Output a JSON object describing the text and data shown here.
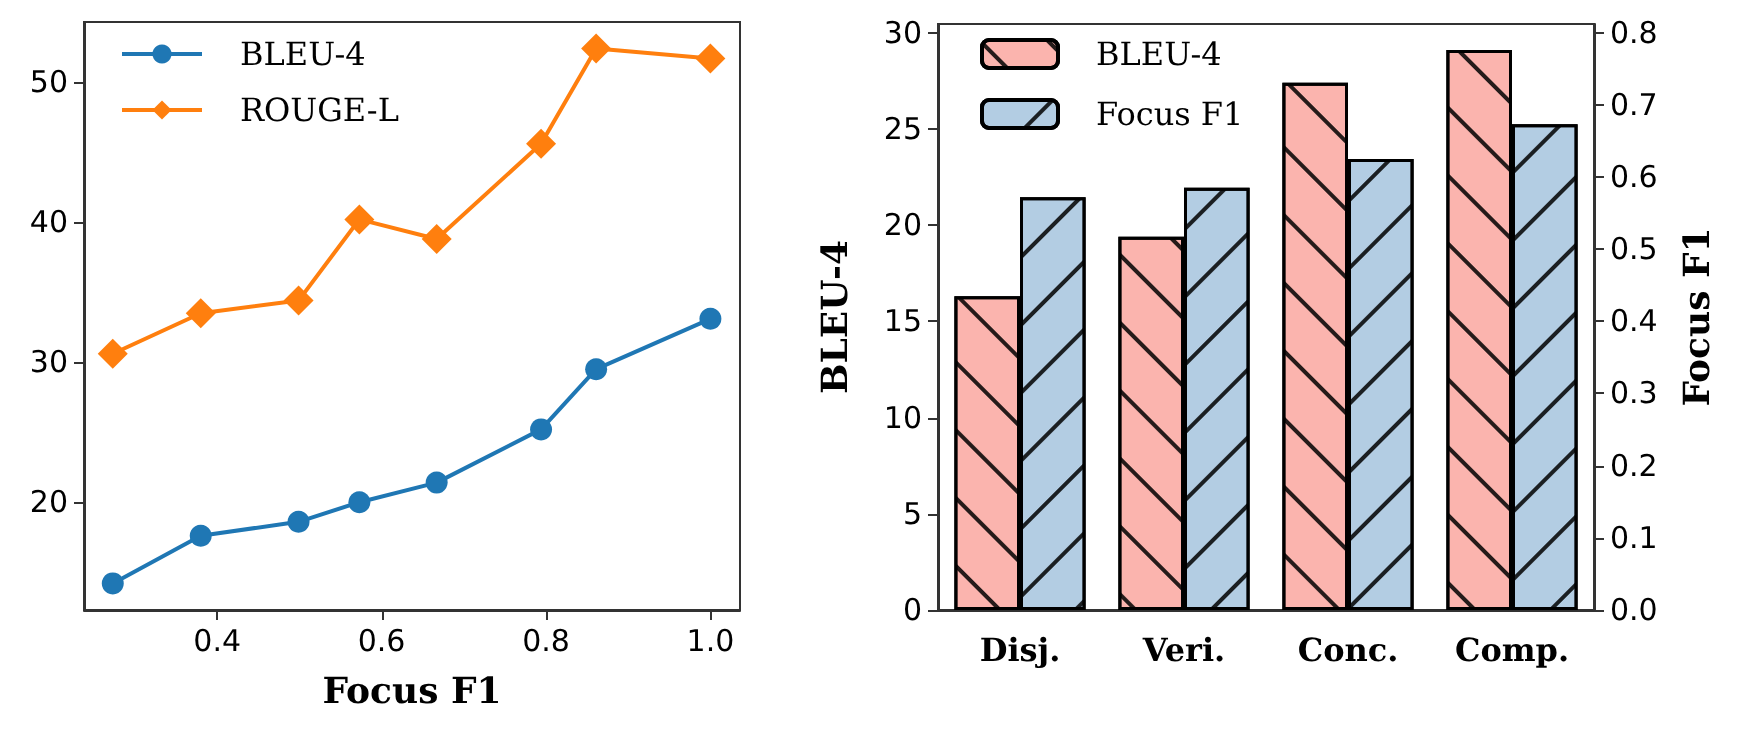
{
  "chart_data": [
    {
      "type": "line",
      "xlabel": "Focus F1",
      "legend": "top left",
      "grid": false,
      "xlim": [
        0.238,
        1.036
      ],
      "xticks": [
        0.4,
        0.6,
        0.8,
        {
          "value": 1.0,
          "label": "1.0"
        }
      ],
      "ylim": [
        12.3,
        54.3
      ],
      "yticks": [
        20,
        30,
        40,
        50
      ],
      "x": [
        0.273,
        0.38,
        0.499,
        0.573,
        0.667,
        0.794,
        0.861,
        1.0
      ],
      "series": [
        {
          "name": "BLEU-4",
          "color": "#1f77b4",
          "marker": "circle",
          "values": [
            14.2,
            17.6,
            18.6,
            20.0,
            21.4,
            25.2,
            29.5,
            33.1
          ]
        },
        {
          "name": "ROUGE-L",
          "color": "#ff7f0e",
          "marker": "diamond",
          "values": [
            30.6,
            33.5,
            34.4,
            40.2,
            38.8,
            45.6,
            52.4,
            51.7
          ]
        }
      ]
    },
    {
      "type": "bar",
      "ylabel": "BLEU-4",
      "y2label": "Focus F1",
      "legend": "top left",
      "grid": false,
      "categories": [
        "Disj.",
        "Veri.",
        "Conc.",
        "Comp."
      ],
      "ylim": [
        0,
        30.45
      ],
      "yticks": [
        0,
        5,
        10,
        15,
        20,
        25,
        30
      ],
      "y2lim": [
        0,
        0.812
      ],
      "y2ticks": [
        {
          "value": 0,
          "label": "0.0"
        },
        0.1,
        0.2,
        0.3,
        0.4,
        0.5,
        0.6,
        0.7,
        0.8
      ],
      "series": [
        {
          "name": "BLEU-4",
          "color": "#fbb4ae",
          "values": [
            16.3,
            19.4,
            27.4,
            29.1
          ]
        },
        {
          "name": "Focus F1",
          "color": "#b3cde3",
          "axis": "y2",
          "values": [
            0.572,
            0.585,
            0.625,
            0.673
          ]
        }
      ]
    }
  ]
}
